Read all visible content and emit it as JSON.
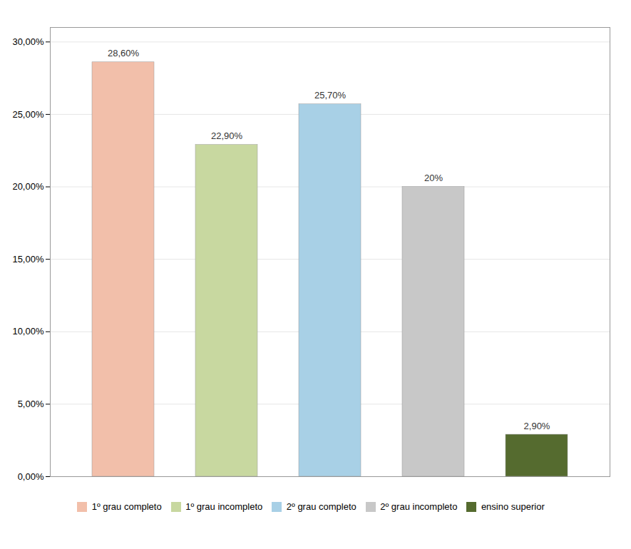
{
  "chart_data": {
    "type": "bar",
    "categories": [
      "1º grau completo",
      "1º grau incompleto",
      "2º grau completo",
      "2º grau incompleto",
      "ensino superior"
    ],
    "values": [
      28.6,
      22.9,
      25.7,
      20.0,
      2.9
    ],
    "value_labels": [
      "28,60%",
      "22,90%",
      "25,70%",
      "20%",
      "2,90%"
    ],
    "data_labels": true,
    "colors": [
      "#F2BFAA",
      "#C8D8A0",
      "#A8D0E6",
      "#C8C8C8",
      "#556B2F"
    ],
    "ylim": [
      0,
      31
    ],
    "yticks": [
      {
        "value": 0,
        "label": "0,00%"
      },
      {
        "value": 5,
        "label": "5,00%"
      },
      {
        "value": 10,
        "label": "10,00%"
      },
      {
        "value": 15,
        "label": "15,00%"
      },
      {
        "value": 20,
        "label": "20,00%"
      },
      {
        "value": 25,
        "label": "25,00%"
      },
      {
        "value": 30,
        "label": "30,00%"
      }
    ],
    "grid": true,
    "legend": "bottom",
    "tick_labels": "y"
  }
}
